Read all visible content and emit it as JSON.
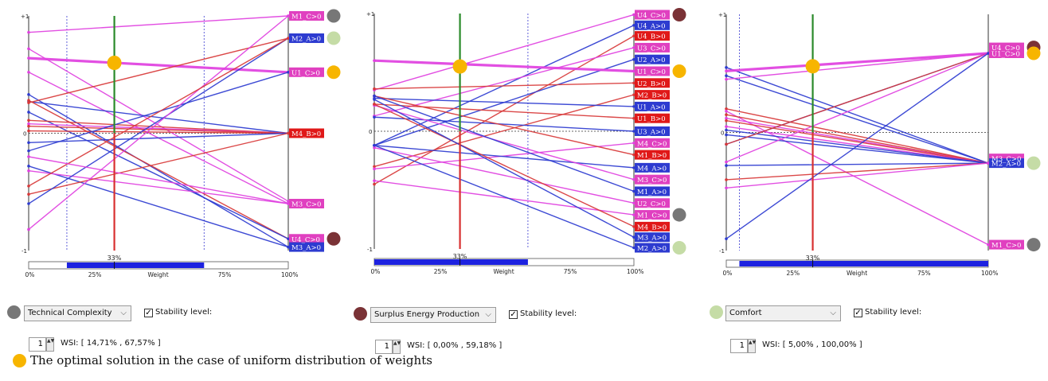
{
  "colors": {
    "magenta": "#e040e0",
    "blue": "#2d3bd0",
    "red": "#d83838",
    "darkred": "#b81e3a",
    "optimal": "#f7b500",
    "gray_dot": "#777777",
    "green_dot": "#c5dca6",
    "maroon_dot": "#7a3236",
    "label_magenta": "#e040c0",
    "label_blue": "#2d3bd0",
    "label_red": "#e01818"
  },
  "legend": {
    "optimal_text": "The optimal solution in the case of uniform distribution of weights",
    "optimal_color": "#f7b500"
  },
  "chart_data": [
    {
      "type": "line",
      "criterion": "Technical Complexity",
      "criterion_dot_color": "#777777",
      "y_ticks": [
        "+1",
        "0",
        "-1"
      ],
      "ylim": [
        -1,
        1
      ],
      "xlim": [
        0,
        100
      ],
      "x_ticks": [
        "0%",
        "25%",
        "Weight",
        "75%",
        "100%"
      ],
      "current_weight": 33,
      "current_weight_label": "33%",
      "stability_range": [
        14.71,
        67.57
      ],
      "stability_label": "Stability level:",
      "stability_checked": true,
      "spin_value": "1",
      "wsi_text": "WSI: [ 14,71% , 67,57% ]",
      "optimal_point": {
        "x": 33,
        "y": 0.6
      },
      "alternatives": [
        {
          "label": "M1_C>0",
          "y0": 0.86,
          "y1": 1.0,
          "color": "magenta",
          "dot": "gray_dot"
        },
        {
          "label": "M2_A>0",
          "y0": -0.6,
          "y1": 0.81,
          "color": "blue",
          "dot": "green_dot"
        },
        {
          "label": "U1_C>0",
          "y0": 0.64,
          "y1": 0.52,
          "color": "magenta",
          "dot": "optimal"
        },
        {
          "label": "M4_B>0",
          "y0": 0.08,
          "y1": 0.0,
          "color": "red",
          "dot": ""
        },
        {
          "label": "M3_C>0",
          "y0": 0.52,
          "y1": -0.6,
          "color": "magenta",
          "dot": ""
        },
        {
          "label": "U4_C>0",
          "y0": 0.3,
          "y1": -0.9,
          "color": "magenta",
          "dot": "maroon_dot"
        },
        {
          "label": "M3_A>0",
          "y0": 0.33,
          "y1": -0.97,
          "color": "blue",
          "dot": ""
        }
      ],
      "lines": [
        {
          "color": "magenta",
          "y0": 0.86,
          "y1": 1.0
        },
        {
          "color": "magenta",
          "y0": 0.72,
          "y1": -0.58
        },
        {
          "color": "magenta",
          "y0": 0.64,
          "y1": 0.52,
          "bold": true
        },
        {
          "color": "magenta",
          "y0": 0.52,
          "y1": -0.6
        },
        {
          "color": "blue",
          "y0": 0.33,
          "y1": -0.97
        },
        {
          "color": "blue",
          "y0": 0.27,
          "y1": 0.0
        },
        {
          "color": "red",
          "y0": 0.28,
          "y1": -0.9
        },
        {
          "color": "red",
          "y0": 0.26,
          "y1": 0.81
        },
        {
          "color": "blue",
          "y0": 0.18,
          "y1": -0.9
        },
        {
          "color": "red",
          "y0": 0.11,
          "y1": 0.0
        },
        {
          "color": "magenta",
          "y0": 0.08,
          "y1": 0.0
        },
        {
          "color": "red",
          "y0": 0.06,
          "y1": 0.0
        },
        {
          "color": "red",
          "y0": 0.02,
          "y1": 0.0
        },
        {
          "color": "blue",
          "y0": -0.08,
          "y1": 0.0
        },
        {
          "color": "blue",
          "y0": -0.15,
          "y1": 0.52
        },
        {
          "color": "blue",
          "y0": -0.28,
          "y1": -0.97
        },
        {
          "color": "magenta",
          "y0": -0.32,
          "y1": -0.6
        },
        {
          "color": "red",
          "y0": -0.52,
          "y1": 0.0
        },
        {
          "color": "blue",
          "y0": -0.6,
          "y1": 0.81
        },
        {
          "color": "magenta",
          "y0": -0.82,
          "y1": 1.0
        },
        {
          "color": "red",
          "y0": -0.45,
          "y1": 0.81
        },
        {
          "color": "magenta",
          "y0": -0.2,
          "y1": -0.6
        }
      ]
    },
    {
      "type": "line",
      "criterion": "Surplus Energy Production",
      "criterion_dot_color": "#7a3236",
      "y_ticks": [
        "+1",
        "0",
        "-1"
      ],
      "ylim": [
        -1,
        1
      ],
      "xlim": [
        0,
        100
      ],
      "x_ticks": [
        "0%",
        "25%",
        "Weight",
        "75%",
        "100%"
      ],
      "current_weight": 33,
      "current_weight_label": "33%",
      "stability_range": [
        0.0,
        59.18
      ],
      "stability_label": "Stability level:",
      "stability_checked": true,
      "spin_value": "1",
      "wsi_text": "WSI: [ 0,00% , 59,18% ]",
      "optimal_point": {
        "x": 33,
        "y": 0.55
      },
      "alternatives": [
        {
          "label": "U4_C>0",
          "y0": 0.35,
          "y1": 0.99,
          "color": "magenta",
          "dot": "maroon_dot"
        },
        {
          "label": "U4_A>0",
          "y0": -0.12,
          "y1": 0.9,
          "color": "blue",
          "dot": ""
        },
        {
          "label": "U4_B>0",
          "y0": -0.45,
          "y1": 0.81,
          "color": "red",
          "dot": ""
        },
        {
          "label": "U3_C>0",
          "y0": 0.13,
          "y1": 0.71,
          "color": "magenta",
          "dot": ""
        },
        {
          "label": "U2_A>0",
          "y0": -0.12,
          "y1": 0.61,
          "color": "blue",
          "dot": ""
        },
        {
          "label": "U1_C>0",
          "y0": 0.6,
          "y1": 0.51,
          "color": "magenta",
          "dot": "optimal"
        },
        {
          "label": "U2_B>0",
          "y0": 0.36,
          "y1": 0.41,
          "color": "red",
          "dot": ""
        },
        {
          "label": "M2_B>0",
          "y0": -0.3,
          "y1": 0.31,
          "color": "red",
          "dot": ""
        },
        {
          "label": "U1_A>0",
          "y0": 0.28,
          "y1": 0.21,
          "color": "blue",
          "dot": ""
        },
        {
          "label": "U1_B>0",
          "y0": 0.23,
          "y1": 0.11,
          "color": "red",
          "dot": ""
        },
        {
          "label": "U3_A>0",
          "y0": 0.12,
          "y1": 0.0,
          "color": "blue",
          "dot": ""
        },
        {
          "label": "M4_C>0",
          "y0": -0.32,
          "y1": -0.1,
          "color": "magenta",
          "dot": ""
        },
        {
          "label": "M1_B>0",
          "y0": 0.3,
          "y1": -0.2,
          "color": "red",
          "dot": ""
        },
        {
          "label": "M4_A>0",
          "y0": -0.12,
          "y1": -0.31,
          "color": "blue",
          "dot": ""
        },
        {
          "label": "M3_C>0",
          "y0": 0.22,
          "y1": -0.41,
          "color": "magenta",
          "dot": ""
        },
        {
          "label": "M1_A>0",
          "y0": 0.3,
          "y1": -0.51,
          "color": "blue",
          "dot": ""
        },
        {
          "label": "U2_C>0",
          "y0": -0.14,
          "y1": -0.61,
          "color": "magenta",
          "dot": ""
        },
        {
          "label": "M1_C>0",
          "y0": -0.42,
          "y1": -0.71,
          "color": "magenta",
          "dot": "gray_dot"
        },
        {
          "label": "M4_B>0",
          "y0": 0.23,
          "y1": -0.81,
          "color": "red",
          "dot": ""
        },
        {
          "label": "M3_A>0",
          "y0": 0.27,
          "y1": -0.9,
          "color": "blue",
          "dot": ""
        },
        {
          "label": "M2_A>0",
          "y0": -0.12,
          "y1": -0.99,
          "color": "blue",
          "dot": "green_dot"
        }
      ]
    },
    {
      "type": "line",
      "criterion": "Comfort",
      "criterion_dot_color": "#c5dca6",
      "y_ticks": [
        "+1",
        "0",
        "-1"
      ],
      "ylim": [
        -1,
        1
      ],
      "xlim": [
        0,
        100
      ],
      "x_ticks": [
        "0%",
        "25%",
        "Weight",
        "75%",
        "100%"
      ],
      "current_weight": 33,
      "current_weight_label": "33%",
      "stability_range": [
        5.0,
        100.0
      ],
      "stability_label": "Stability level:",
      "stability_checked": true,
      "spin_value": "1",
      "wsi_text": "WSI: [ 5,00% , 100,00% ]",
      "optimal_point": {
        "x": 33,
        "y": 0.56
      },
      "alternatives": [
        {
          "label": "U4_C>0",
          "y0": 0.2,
          "y1": 0.72,
          "color": "magenta",
          "dot": "maroon_dot"
        },
        {
          "label": "U1_C>0",
          "y0": 0.5,
          "y1": 0.67,
          "color": "magenta",
          "dot": "optimal"
        },
        {
          "label": "M3_C>0",
          "y0": 0.18,
          "y1": -0.22,
          "color": "magenta",
          "dot": ""
        },
        {
          "label": "M2_A>0",
          "y0": 0.55,
          "y1": -0.26,
          "color": "blue",
          "dot": "green_dot"
        },
        {
          "label": "M1_C>0",
          "y0": 0.12,
          "y1": -0.95,
          "color": "magenta",
          "dot": "gray_dot"
        }
      ],
      "lines": [
        {
          "color": "blue",
          "y0": 0.55,
          "y1": -0.26
        },
        {
          "color": "magenta",
          "y0": 0.52,
          "y1": 0.67,
          "bold": true
        },
        {
          "color": "blue",
          "y0": 0.48,
          "y1": -0.26
        },
        {
          "color": "magenta",
          "y0": 0.45,
          "y1": 0.67
        },
        {
          "color": "red",
          "y0": 0.2,
          "y1": -0.26
        },
        {
          "color": "magenta",
          "y0": 0.18,
          "y1": -0.95
        },
        {
          "color": "red",
          "y0": 0.15,
          "y1": -0.26
        },
        {
          "color": "magenta",
          "y0": 0.12,
          "y1": -0.26
        },
        {
          "color": "red",
          "y0": 0.1,
          "y1": -0.26
        },
        {
          "color": "magenta",
          "y0": 0.05,
          "y1": -0.26
        },
        {
          "color": "blue",
          "y0": 0.02,
          "y1": -0.26
        },
        {
          "color": "blue",
          "y0": -0.02,
          "y1": -0.26
        },
        {
          "color": "blue",
          "y0": -0.1,
          "y1": 0.67
        },
        {
          "color": "red",
          "y0": -0.1,
          "y1": 0.67
        },
        {
          "color": "magenta",
          "y0": -0.25,
          "y1": 0.67
        },
        {
          "color": "blue",
          "y0": -0.28,
          "y1": -0.26
        },
        {
          "color": "red",
          "y0": -0.4,
          "y1": -0.26
        },
        {
          "color": "magenta",
          "y0": -0.47,
          "y1": -0.26
        },
        {
          "color": "blue",
          "y0": -0.9,
          "y1": 0.67
        }
      ]
    }
  ]
}
